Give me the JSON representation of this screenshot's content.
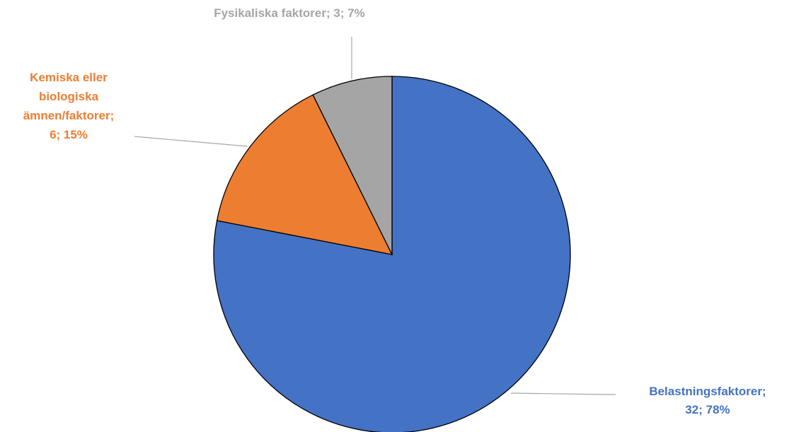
{
  "chart_data": {
    "type": "pie",
    "values": [
      32,
      6,
      3
    ],
    "value_labels": [
      [
        "Belastningsfaktorer;",
        "32; 78%"
      ],
      [
        "Kemiska eller",
        "biologiska",
        "ämnen/faktorer;",
        "6; 15%"
      ],
      [
        "Fysikaliska faktorer; 3; 7%"
      ]
    ],
    "colors": [
      "#4472c4",
      "#ed7d31",
      "#a5a5a5"
    ]
  }
}
